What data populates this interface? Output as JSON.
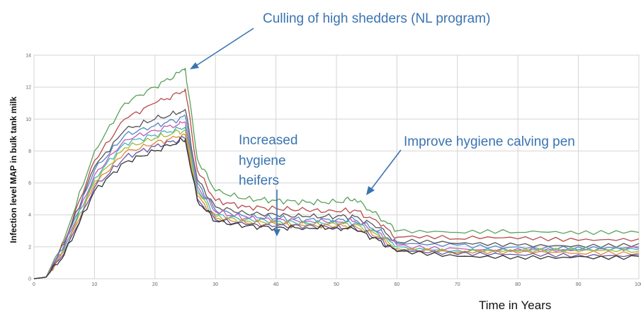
{
  "chart_data": {
    "type": "line",
    "title": "",
    "xlabel": "Time in Years",
    "ylabel": "Infection level MAP in bulk tank milk",
    "xlim": [
      0,
      100
    ],
    "ylim": [
      0,
      14
    ],
    "x_ticks": [
      0,
      10,
      20,
      30,
      40,
      50,
      60,
      70,
      80,
      90,
      100
    ],
    "y_ticks": [
      0,
      2,
      4,
      6,
      8,
      10,
      12,
      14
    ],
    "grid": true,
    "legend": "none",
    "annotations": [
      {
        "text": "Culling of high shedders (NL program)"
      },
      {
        "text": "Increased"
      },
      {
        "text": "hygiene"
      },
      {
        "text": "heifers"
      },
      {
        "text": "Improve hygiene calving pen"
      }
    ],
    "series": [
      {
        "color": "#5aa05a",
        "values": [
          [
            0,
            0
          ],
          [
            2,
            0.1
          ],
          [
            5,
            2.5
          ],
          [
            10,
            8.0
          ],
          [
            15,
            11.0
          ],
          [
            20,
            12.0
          ],
          [
            24,
            12.9
          ],
          [
            25,
            13.2
          ],
          [
            27,
            7.5
          ],
          [
            30,
            5.5
          ],
          [
            35,
            5.0
          ],
          [
            40,
            4.9
          ],
          [
            45,
            4.8
          ],
          [
            50,
            4.8
          ],
          [
            53,
            5.0
          ],
          [
            57,
            3.9
          ],
          [
            60,
            3.0
          ],
          [
            70,
            2.9
          ],
          [
            80,
            2.9
          ],
          [
            90,
            2.8
          ],
          [
            100,
            2.9
          ]
        ]
      },
      {
        "color": "#b84a4a",
        "values": [
          [
            0,
            0
          ],
          [
            2,
            0.1
          ],
          [
            5,
            2.3
          ],
          [
            10,
            7.4
          ],
          [
            15,
            10.0
          ],
          [
            20,
            11.0
          ],
          [
            24,
            11.6
          ],
          [
            25,
            11.9
          ],
          [
            27,
            6.8
          ],
          [
            30,
            4.9
          ],
          [
            35,
            4.5
          ],
          [
            40,
            4.4
          ],
          [
            45,
            4.3
          ],
          [
            50,
            4.2
          ],
          [
            53,
            4.3
          ],
          [
            57,
            3.5
          ],
          [
            60,
            2.6
          ],
          [
            70,
            2.5
          ],
          [
            80,
            2.5
          ],
          [
            90,
            2.4
          ],
          [
            100,
            2.5
          ]
        ]
      },
      {
        "color": "#555555",
        "values": [
          [
            0,
            0
          ],
          [
            2,
            0.1
          ],
          [
            5,
            2.2
          ],
          [
            10,
            7.0
          ],
          [
            15,
            9.3
          ],
          [
            20,
            10.0
          ],
          [
            24,
            10.4
          ],
          [
            25,
            10.6
          ],
          [
            27,
            6.2
          ],
          [
            30,
            4.5
          ],
          [
            35,
            4.1
          ],
          [
            40,
            4.0
          ],
          [
            45,
            3.9
          ],
          [
            50,
            3.9
          ],
          [
            53,
            3.9
          ],
          [
            57,
            3.2
          ],
          [
            60,
            2.3
          ],
          [
            70,
            2.2
          ],
          [
            80,
            2.1
          ],
          [
            90,
            2.1
          ],
          [
            100,
            2.2
          ]
        ]
      },
      {
        "color": "#4f86c6",
        "values": [
          [
            0,
            0
          ],
          [
            2,
            0.1
          ],
          [
            5,
            2.1
          ],
          [
            10,
            6.8
          ],
          [
            15,
            9.0
          ],
          [
            20,
            9.6
          ],
          [
            24,
            10.0
          ],
          [
            25,
            10.2
          ],
          [
            27,
            6.0
          ],
          [
            30,
            4.3
          ],
          [
            35,
            3.9
          ],
          [
            40,
            3.8
          ],
          [
            45,
            3.7
          ],
          [
            50,
            3.7
          ],
          [
            53,
            3.7
          ],
          [
            57,
            3.0
          ],
          [
            60,
            2.2
          ],
          [
            70,
            2.1
          ],
          [
            80,
            2.0
          ],
          [
            90,
            2.0
          ],
          [
            100,
            2.0
          ]
        ]
      },
      {
        "color": "#c45cb6",
        "values": [
          [
            0,
            0
          ],
          [
            2,
            0.1
          ],
          [
            5,
            2.0
          ],
          [
            10,
            6.5
          ],
          [
            15,
            8.7
          ],
          [
            20,
            9.3
          ],
          [
            24,
            9.7
          ],
          [
            25,
            9.8
          ],
          [
            27,
            5.8
          ],
          [
            30,
            4.2
          ],
          [
            35,
            3.8
          ],
          [
            40,
            3.7
          ],
          [
            45,
            3.6
          ],
          [
            50,
            3.6
          ],
          [
            53,
            3.6
          ],
          [
            57,
            2.9
          ],
          [
            60,
            2.1
          ],
          [
            70,
            1.9
          ],
          [
            80,
            1.9
          ],
          [
            90,
            1.8
          ],
          [
            100,
            1.9
          ]
        ]
      },
      {
        "color": "#3cb8b8",
        "values": [
          [
            0,
            0
          ],
          [
            2,
            0.1
          ],
          [
            5,
            1.9
          ],
          [
            10,
            6.3
          ],
          [
            15,
            8.5
          ],
          [
            20,
            9.0
          ],
          [
            24,
            9.4
          ],
          [
            25,
            9.5
          ],
          [
            27,
            5.6
          ],
          [
            30,
            4.0
          ],
          [
            35,
            3.7
          ],
          [
            40,
            3.6
          ],
          [
            45,
            3.5
          ],
          [
            50,
            3.5
          ],
          [
            53,
            3.5
          ],
          [
            57,
            2.8
          ],
          [
            60,
            2.0
          ],
          [
            70,
            1.8
          ],
          [
            80,
            1.8
          ],
          [
            90,
            1.8
          ],
          [
            100,
            1.8
          ]
        ]
      },
      {
        "color": "#a6b83c",
        "values": [
          [
            0,
            0
          ],
          [
            2,
            0.1
          ],
          [
            5,
            1.8
          ],
          [
            10,
            6.1
          ],
          [
            15,
            8.2
          ],
          [
            20,
            8.8
          ],
          [
            24,
            9.2
          ],
          [
            25,
            9.3
          ],
          [
            27,
            5.4
          ],
          [
            30,
            3.9
          ],
          [
            35,
            3.6
          ],
          [
            40,
            3.5
          ],
          [
            45,
            3.4
          ],
          [
            50,
            3.4
          ],
          [
            53,
            3.4
          ],
          [
            57,
            2.7
          ],
          [
            60,
            1.9
          ],
          [
            70,
            1.7
          ],
          [
            80,
            1.7
          ],
          [
            90,
            1.7
          ],
          [
            100,
            1.7
          ]
        ]
      },
      {
        "color": "#e08a3c",
        "values": [
          [
            0,
            0
          ],
          [
            2,
            0.1
          ],
          [
            5,
            1.7
          ],
          [
            10,
            5.9
          ],
          [
            15,
            7.9
          ],
          [
            20,
            8.5
          ],
          [
            24,
            8.9
          ],
          [
            25,
            9.0
          ],
          [
            27,
            5.2
          ],
          [
            30,
            3.8
          ],
          [
            35,
            3.5
          ],
          [
            40,
            3.4
          ],
          [
            45,
            3.3
          ],
          [
            50,
            3.3
          ],
          [
            53,
            3.3
          ],
          [
            57,
            2.6
          ],
          [
            60,
            1.8
          ],
          [
            70,
            1.6
          ],
          [
            80,
            1.6
          ],
          [
            90,
            1.6
          ],
          [
            100,
            1.6
          ]
        ]
      },
      {
        "color": "#6a55a8",
        "values": [
          [
            0,
            0
          ],
          [
            2,
            0.1
          ],
          [
            5,
            1.6
          ],
          [
            10,
            5.7
          ],
          [
            15,
            7.6
          ],
          [
            20,
            8.3
          ],
          [
            24,
            8.7
          ],
          [
            25,
            8.8
          ],
          [
            27,
            5.0
          ],
          [
            30,
            3.7
          ],
          [
            35,
            3.4
          ],
          [
            40,
            3.3
          ],
          [
            45,
            3.3
          ],
          [
            50,
            3.2
          ],
          [
            53,
            3.2
          ],
          [
            57,
            2.5
          ],
          [
            60,
            1.7
          ],
          [
            70,
            1.5
          ],
          [
            80,
            1.5
          ],
          [
            90,
            1.5
          ],
          [
            100,
            1.5
          ]
        ]
      },
      {
        "color": "#333333",
        "values": [
          [
            0,
            0
          ],
          [
            2,
            0.1
          ],
          [
            5,
            1.5
          ],
          [
            10,
            5.5
          ],
          [
            15,
            7.3
          ],
          [
            20,
            8.0
          ],
          [
            24,
            8.6
          ],
          [
            25,
            8.7
          ],
          [
            27,
            4.9
          ],
          [
            30,
            3.6
          ],
          [
            35,
            3.3
          ],
          [
            40,
            3.2
          ],
          [
            45,
            3.2
          ],
          [
            50,
            3.2
          ],
          [
            53,
            3.1
          ],
          [
            57,
            2.4
          ],
          [
            60,
            1.7
          ],
          [
            70,
            1.4
          ],
          [
            80,
            1.4
          ],
          [
            90,
            1.4
          ],
          [
            100,
            1.4
          ]
        ]
      }
    ]
  }
}
